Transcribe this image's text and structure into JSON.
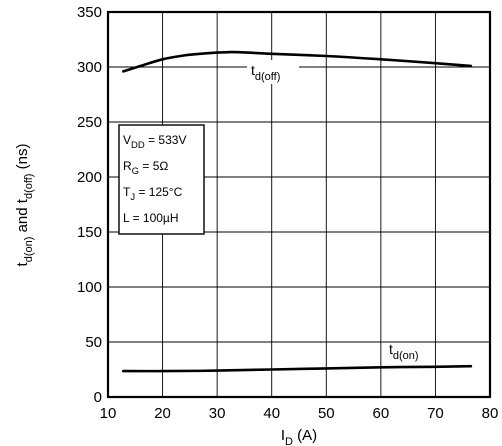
{
  "chart_data": {
    "type": "line",
    "xlabel": {
      "main": "I",
      "sub": "D",
      "rest": " (A)"
    },
    "ylabel": {
      "t1": "t",
      "sub1": "d(on)",
      "mid": " and t",
      "sub2": "d(off)",
      "rest": " (ns)"
    },
    "xlim": [
      10,
      80
    ],
    "ylim": [
      0,
      350
    ],
    "xticks": [
      "10",
      "20",
      "30",
      "40",
      "50",
      "60",
      "70",
      "80"
    ],
    "yticks": [
      "0",
      "50",
      "100",
      "150",
      "200",
      "250",
      "300",
      "350"
    ],
    "grid": true,
    "conditions": [
      {
        "main": "V",
        "sub": "DD",
        "rest": " = 533V"
      },
      {
        "main": "R",
        "sub": "G",
        "rest": " = 5Ω"
      },
      {
        "main": "T",
        "sub": "J",
        "rest": " = 125°C"
      },
      {
        "main": "L = 100µH",
        "sub": "",
        "rest": ""
      }
    ],
    "series": [
      {
        "name": "t_d(off)",
        "label": {
          "main": "t",
          "sub": "d(off)"
        },
        "x": [
          12.8,
          16,
          20,
          24,
          28,
          32,
          34,
          40,
          50,
          60,
          70,
          76.5
        ],
        "y": [
          296,
          301,
          307,
          310.5,
          312.5,
          313.5,
          313.5,
          312,
          310,
          307,
          303.5,
          301
        ]
      },
      {
        "name": "t_d(on)",
        "label": {
          "main": "t",
          "sub": "d(on)"
        },
        "x": [
          12.8,
          20,
          30,
          40,
          50,
          60,
          70,
          76.5
        ],
        "y": [
          23.5,
          23.5,
          24,
          25,
          26,
          27,
          27.5,
          28
        ]
      }
    ]
  }
}
